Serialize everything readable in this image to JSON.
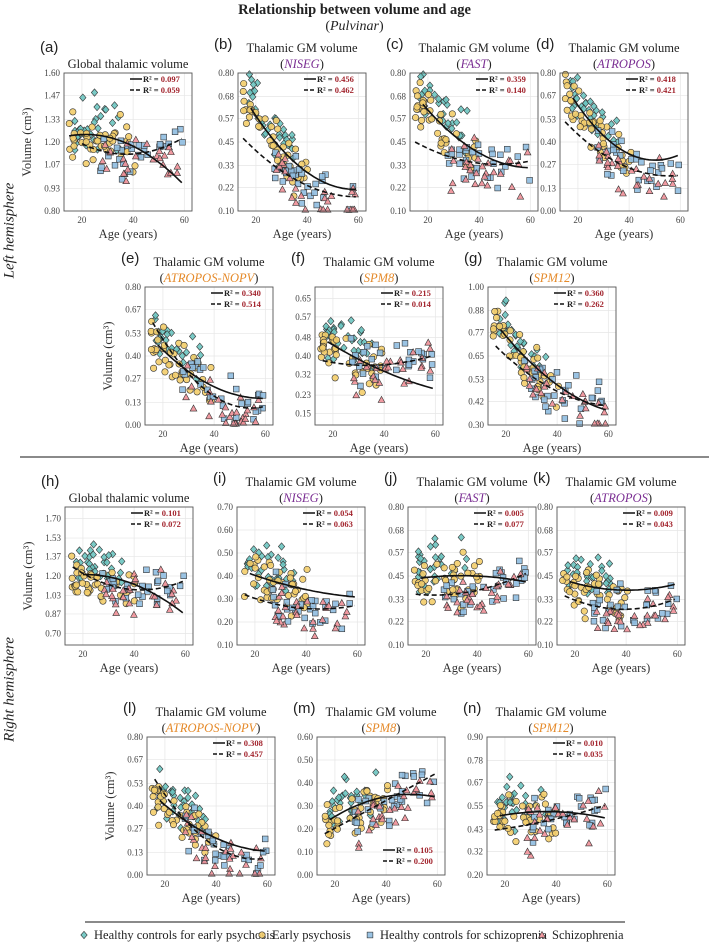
{
  "figure": {
    "title": "Relationship between volume and age",
    "region": "Pulvinar",
    "left_hemisphere": "Left hemisphere",
    "right_hemisphere": "Right hemisphere"
  },
  "legend": [
    {
      "label": "Healthy controls for early psychosis",
      "marker": "diamond",
      "color": "#6cc4c0"
    },
    {
      "label": "Early psychosis",
      "marker": "circle",
      "color": "#f3cd6a"
    },
    {
      "label": "Healthy controls for schizoprenia",
      "marker": "square",
      "color": "#8fbde0"
    },
    {
      "label": "Schizophrenia",
      "marker": "triangle",
      "color": "#ee8f97"
    }
  ],
  "colors": {
    "r2_value": "#a3262f",
    "method_purple": "#7b2f93",
    "method_orange": "#e58a2a"
  },
  "chart_data": [
    {
      "type": "scatter",
      "id": "a",
      "label": "(a)",
      "title": "Global thalamic volume",
      "method": "",
      "method_color": "",
      "hemisphere": "left",
      "ylabel": "Volume (cm³)",
      "xlabel": "Age (years)",
      "xticks": [
        20,
        40,
        60
      ],
      "xlim": [
        13,
        63
      ],
      "yticks": [
        "0.80",
        "0.93",
        "1.07",
        "1.20",
        "1.33",
        "1.47",
        "1.60"
      ],
      "ylim": [
        0.8,
        1.6
      ],
      "grid": true,
      "legend_position": "top-right",
      "r2_solid": "0.097",
      "r2_dashed": "0.059",
      "fit_solid": [
        [
          15,
          1.27
        ],
        [
          20,
          1.2
        ],
        [
          30,
          1.22
        ],
        [
          40,
          1.19
        ],
        [
          50,
          1.1
        ],
        [
          59,
          0.95
        ]
      ],
      "fit_dashed": [
        [
          20,
          1.19
        ],
        [
          30,
          1.14
        ],
        [
          40,
          1.13
        ],
        [
          50,
          1.16
        ],
        [
          59,
          1.22
        ]
      ]
    },
    {
      "type": "scatter",
      "id": "b",
      "label": "(b)",
      "title": "Thalamic GM volume",
      "method": "NISEG",
      "method_color": "#7b2f93",
      "hemisphere": "left",
      "ylabel": "",
      "xlabel": "Age (years)",
      "xticks": [
        20,
        40,
        60
      ],
      "xlim": [
        13,
        63
      ],
      "yticks": [
        "0.10",
        "0.22",
        "0.33",
        "0.45",
        "0.57",
        "0.68",
        "0.80"
      ],
      "ylim": [
        0.1,
        0.8
      ],
      "grid": true,
      "legend_position": "top-right",
      "r2_solid": "0.456",
      "r2_dashed": "0.462",
      "fit_solid": [
        [
          18,
          0.62
        ],
        [
          30,
          0.42
        ],
        [
          40,
          0.29
        ],
        [
          50,
          0.23
        ],
        [
          59,
          0.21
        ]
      ],
      "fit_dashed": [
        [
          15,
          0.47
        ],
        [
          30,
          0.3
        ],
        [
          40,
          0.23
        ],
        [
          50,
          0.19
        ],
        [
          59,
          0.17
        ]
      ]
    },
    {
      "type": "scatter",
      "id": "c",
      "label": "(c)",
      "title": "Thalamic GM volume",
      "method": "FAST",
      "method_color": "#7b2f93",
      "hemisphere": "left",
      "ylabel": "",
      "xlabel": "Age (years)",
      "xticks": [
        20,
        40,
        60
      ],
      "xlim": [
        13,
        63
      ],
      "yticks": [
        "0.10",
        "0.22",
        "0.33",
        "0.45",
        "0.57",
        "0.68",
        "0.80"
      ],
      "ylim": [
        0.1,
        0.8
      ],
      "grid": true,
      "legend_position": "top-right",
      "r2_solid": "0.359",
      "r2_dashed": "0.140",
      "fit_solid": [
        [
          18,
          0.64
        ],
        [
          30,
          0.49
        ],
        [
          40,
          0.39
        ],
        [
          50,
          0.34
        ],
        [
          59,
          0.32
        ]
      ],
      "fit_dashed": [
        [
          15,
          0.45
        ],
        [
          30,
          0.37
        ],
        [
          40,
          0.34
        ],
        [
          50,
          0.34
        ],
        [
          59,
          0.35
        ]
      ]
    },
    {
      "type": "scatter",
      "id": "d",
      "label": "(d)",
      "title": "Thalamic GM volume",
      "method": "ATROPOS",
      "method_color": "#7b2f93",
      "hemisphere": "left",
      "ylabel": "",
      "xlabel": "Age (years)",
      "xticks": [
        20,
        40,
        60
      ],
      "xlim": [
        13,
        63
      ],
      "yticks": [
        "0.00",
        "0.13",
        "0.27",
        "0.40",
        "0.53",
        "0.67",
        "0.80"
      ],
      "ylim": [
        0.0,
        0.8
      ],
      "grid": true,
      "legend_position": "top-right",
      "r2_solid": "0.418",
      "r2_dashed": "0.421",
      "fit_solid": [
        [
          18,
          0.65
        ],
        [
          30,
          0.45
        ],
        [
          40,
          0.33
        ],
        [
          50,
          0.28
        ],
        [
          59,
          0.33
        ]
      ],
      "fit_dashed": [
        [
          15,
          0.52
        ],
        [
          30,
          0.32
        ],
        [
          40,
          0.25
        ],
        [
          50,
          0.22
        ],
        [
          59,
          0.2
        ]
      ]
    },
    {
      "type": "scatter",
      "id": "e",
      "label": "(e)",
      "title": "Thalamic GM volume",
      "method": "ATROPOS-NOPV",
      "method_color": "#e58a2a",
      "hemisphere": "left",
      "ylabel": "Volume (cm³)",
      "xlabel": "Age (years)",
      "xticks": [
        20,
        40,
        60
      ],
      "xlim": [
        13,
        63
      ],
      "yticks": [
        "0.00",
        "0.13",
        "0.27",
        "0.40",
        "0.53",
        "0.67",
        "0.80"
      ],
      "ylim": [
        0.0,
        0.8
      ],
      "grid": true,
      "legend_position": "top-right",
      "r2_solid": "0.340",
      "r2_dashed": "0.514",
      "fit_solid": [
        [
          18,
          0.46
        ],
        [
          30,
          0.32
        ],
        [
          40,
          0.22
        ],
        [
          50,
          0.16
        ],
        [
          59,
          0.16
        ]
      ],
      "fit_dashed": [
        [
          16,
          0.6
        ],
        [
          30,
          0.28
        ],
        [
          40,
          0.18
        ],
        [
          50,
          0.11
        ],
        [
          59,
          0.1
        ]
      ]
    },
    {
      "type": "scatter",
      "id": "f",
      "label": "(f)",
      "title": "Thalamic GM volume",
      "method": "SPM8",
      "method_color": "#e58a2a",
      "hemisphere": "left",
      "ylabel": "",
      "xlabel": "Age (years)",
      "xticks": [
        20,
        40,
        60
      ],
      "xlim": [
        13,
        63
      ],
      "yticks": [
        "0.15",
        "0.23",
        "0.32",
        "0.40",
        "0.48",
        "0.57",
        "0.65"
      ],
      "ylim": [
        0.1,
        0.7
      ],
      "grid": true,
      "legend_position": "top-right",
      "r2_solid": "0.215",
      "r2_dashed": "0.014",
      "fit_solid": [
        [
          18,
          0.46
        ],
        [
          30,
          0.39
        ],
        [
          40,
          0.33
        ],
        [
          50,
          0.29
        ],
        [
          59,
          0.26
        ]
      ],
      "fit_dashed": [
        [
          16,
          0.38
        ],
        [
          30,
          0.36
        ],
        [
          40,
          0.36
        ],
        [
          50,
          0.38
        ],
        [
          59,
          0.4
        ]
      ]
    },
    {
      "type": "scatter",
      "id": "g",
      "label": "(g)",
      "title": "Thalamic GM volume",
      "method": "SPM12",
      "method_color": "#e58a2a",
      "hemisphere": "left",
      "ylabel": "",
      "xlabel": "Age (years)",
      "xticks": [
        20,
        40,
        60
      ],
      "xlim": [
        13,
        63
      ],
      "yticks": [
        "0.30",
        "0.42",
        "0.53",
        "0.65",
        "0.77",
        "0.88",
        "1.00"
      ],
      "ylim": [
        0.3,
        1.0
      ],
      "grid": true,
      "legend_position": "top-right",
      "r2_solid": "0.360",
      "r2_dashed": "0.262",
      "fit_solid": [
        [
          18,
          0.78
        ],
        [
          30,
          0.62
        ],
        [
          40,
          0.5
        ],
        [
          50,
          0.42
        ],
        [
          59,
          0.38
        ]
      ],
      "fit_dashed": [
        [
          16,
          0.7
        ],
        [
          30,
          0.55
        ],
        [
          40,
          0.47
        ],
        [
          50,
          0.42
        ],
        [
          59,
          0.4
        ]
      ]
    },
    {
      "type": "scatter",
      "id": "h",
      "label": "(h)",
      "title": "Global thalamic volume",
      "method": "",
      "method_color": "",
      "hemisphere": "right",
      "ylabel": "Volume (cm³)",
      "xlabel": "Age (years)",
      "xticks": [
        20,
        40,
        60
      ],
      "xlim": [
        13,
        63
      ],
      "yticks": [
        "0.70",
        "0.87",
        "1.03",
        "1.20",
        "1.37",
        "1.53",
        "1.70"
      ],
      "ylim": [
        0.6,
        1.8
      ],
      "grid": true,
      "legend_position": "top-right",
      "r2_solid": "0.101",
      "r2_dashed": "0.072",
      "fit_solid": [
        [
          20,
          1.21
        ],
        [
          30,
          1.2
        ],
        [
          40,
          1.12
        ],
        [
          50,
          1.02
        ],
        [
          59,
          0.88
        ]
      ],
      "fit_dashed": [
        [
          16,
          1.28
        ],
        [
          30,
          1.12
        ],
        [
          40,
          1.08
        ],
        [
          50,
          1.1
        ],
        [
          59,
          1.15
        ]
      ]
    },
    {
      "type": "scatter",
      "id": "i",
      "label": "(i)",
      "title": "Thalamic GM volume",
      "method": "NISEG",
      "method_color": "#7b2f93",
      "hemisphere": "right",
      "ylabel": "",
      "xlabel": "Age (years)",
      "xticks": [
        20,
        40,
        60
      ],
      "xlim": [
        13,
        63
      ],
      "yticks": [
        "0.10",
        "0.20",
        "0.30",
        "0.40",
        "0.50",
        "0.60",
        "0.70"
      ],
      "ylim": [
        0.1,
        0.7
      ],
      "grid": true,
      "legend_position": "top-right",
      "r2_solid": "0.054",
      "r2_dashed": "0.063",
      "fit_solid": [
        [
          18,
          0.41
        ],
        [
          30,
          0.37
        ],
        [
          40,
          0.34
        ],
        [
          50,
          0.32
        ],
        [
          59,
          0.31
        ]
      ],
      "fit_dashed": [
        [
          16,
          0.32
        ],
        [
          30,
          0.27
        ],
        [
          40,
          0.26
        ],
        [
          50,
          0.26
        ],
        [
          59,
          0.27
        ]
      ]
    },
    {
      "type": "scatter",
      "id": "j",
      "label": "(j)",
      "title": "Thalamic GM volume",
      "method": "FAST",
      "method_color": "#7b2f93",
      "hemisphere": "right",
      "ylabel": "",
      "xlabel": "Age (years)",
      "xticks": [
        20,
        40,
        60
      ],
      "xlim": [
        13,
        63
      ],
      "yticks": [
        "0.10",
        "0.22",
        "0.33",
        "0.45",
        "0.57",
        "0.68",
        "0.80"
      ],
      "ylim": [
        0.1,
        0.8
      ],
      "grid": true,
      "legend_position": "top-right",
      "r2_solid": "0.005",
      "r2_dashed": "0.077",
      "fit_solid": [
        [
          18,
          0.44
        ],
        [
          30,
          0.45
        ],
        [
          40,
          0.45
        ],
        [
          50,
          0.44
        ],
        [
          59,
          0.42
        ]
      ],
      "fit_dashed": [
        [
          16,
          0.36
        ],
        [
          30,
          0.35
        ],
        [
          40,
          0.38
        ],
        [
          50,
          0.42
        ],
        [
          59,
          0.46
        ]
      ]
    },
    {
      "type": "scatter",
      "id": "k",
      "label": "(k)",
      "title": "Thalamic GM volume",
      "method": "ATROPOS",
      "method_color": "#7b2f93",
      "hemisphere": "right",
      "ylabel": "",
      "xlabel": "Age (years)",
      "xticks": [
        20,
        40,
        60
      ],
      "xlim": [
        13,
        63
      ],
      "yticks": [
        "0.10",
        "0.22",
        "0.33",
        "0.45",
        "0.57",
        "0.68",
        "0.80"
      ],
      "ylim": [
        0.1,
        0.8
      ],
      "grid": true,
      "legend_position": "top-right",
      "r2_solid": "0.009",
      "r2_dashed": "0.043",
      "fit_solid": [
        [
          18,
          0.42
        ],
        [
          30,
          0.39
        ],
        [
          40,
          0.38
        ],
        [
          50,
          0.38
        ],
        [
          59,
          0.41
        ]
      ],
      "fit_dashed": [
        [
          16,
          0.35
        ],
        [
          30,
          0.29
        ],
        [
          40,
          0.28
        ],
        [
          50,
          0.3
        ],
        [
          59,
          0.33
        ]
      ]
    },
    {
      "type": "scatter",
      "id": "l",
      "label": "(l)",
      "title": "Thalamic GM volume",
      "method": "ATROPOS-NOPV",
      "method_color": "#e58a2a",
      "hemisphere": "right",
      "ylabel": "Volume (cm³)",
      "xlabel": "Age (years)",
      "xticks": [
        20,
        40,
        60
      ],
      "xlim": [
        13,
        63
      ],
      "yticks": [
        "0.00",
        "0.13",
        "0.27",
        "0.40",
        "0.53",
        "0.67",
        "0.80"
      ],
      "ylim": [
        0.0,
        0.8
      ],
      "grid": true,
      "legend_position": "top-right",
      "r2_solid": "0.308",
      "r2_dashed": "0.457",
      "fit_solid": [
        [
          18,
          0.43
        ],
        [
          30,
          0.3
        ],
        [
          40,
          0.21
        ],
        [
          50,
          0.16
        ],
        [
          59,
          0.14
        ]
      ],
      "fit_dashed": [
        [
          16,
          0.56
        ],
        [
          30,
          0.27
        ],
        [
          40,
          0.17
        ],
        [
          50,
          0.11
        ],
        [
          59,
          0.09
        ]
      ]
    },
    {
      "type": "scatter",
      "id": "m",
      "label": "(m)",
      "title": "Thalamic GM volume",
      "method": "SPM8",
      "method_color": "#e58a2a",
      "hemisphere": "right",
      "ylabel": "",
      "xlabel": "Age (years)",
      "xticks": [
        20,
        40,
        60
      ],
      "xlim": [
        13,
        63
      ],
      "yticks": [
        "0.00",
        "0.10",
        "0.20",
        "0.30",
        "0.40",
        "0.50",
        "0.60"
      ],
      "ylim": [
        0.0,
        0.6
      ],
      "grid": true,
      "legend_position": "bottom-right",
      "r2_solid": "0.105",
      "r2_dashed": "0.200",
      "fit_solid": [
        [
          18,
          0.24
        ],
        [
          30,
          0.31
        ],
        [
          40,
          0.34
        ],
        [
          50,
          0.35
        ],
        [
          59,
          0.34
        ]
      ],
      "fit_dashed": [
        [
          16,
          0.18
        ],
        [
          30,
          0.26
        ],
        [
          40,
          0.33
        ],
        [
          50,
          0.38
        ],
        [
          59,
          0.44
        ]
      ]
    },
    {
      "type": "scatter",
      "id": "n",
      "label": "(n)",
      "title": "Thalamic GM volume",
      "method": "SPM12",
      "method_color": "#e58a2a",
      "hemisphere": "right",
      "ylabel": "",
      "xlabel": "Age (years)",
      "xticks": [
        20,
        40,
        60
      ],
      "xlim": [
        13,
        63
      ],
      "yticks": [
        "0.20",
        "0.32",
        "0.43",
        "0.55",
        "0.67",
        "0.78",
        "0.90"
      ],
      "ylim": [
        0.2,
        0.9
      ],
      "grid": true,
      "legend_position": "top-right",
      "r2_solid": "0.010",
      "r2_dashed": "0.035",
      "fit_solid": [
        [
          18,
          0.5
        ],
        [
          30,
          0.52
        ],
        [
          40,
          0.52
        ],
        [
          50,
          0.51
        ],
        [
          59,
          0.49
        ]
      ],
      "fit_dashed": [
        [
          16,
          0.43
        ],
        [
          30,
          0.45
        ],
        [
          40,
          0.49
        ],
        [
          50,
          0.52
        ],
        [
          59,
          0.55
        ]
      ]
    }
  ]
}
